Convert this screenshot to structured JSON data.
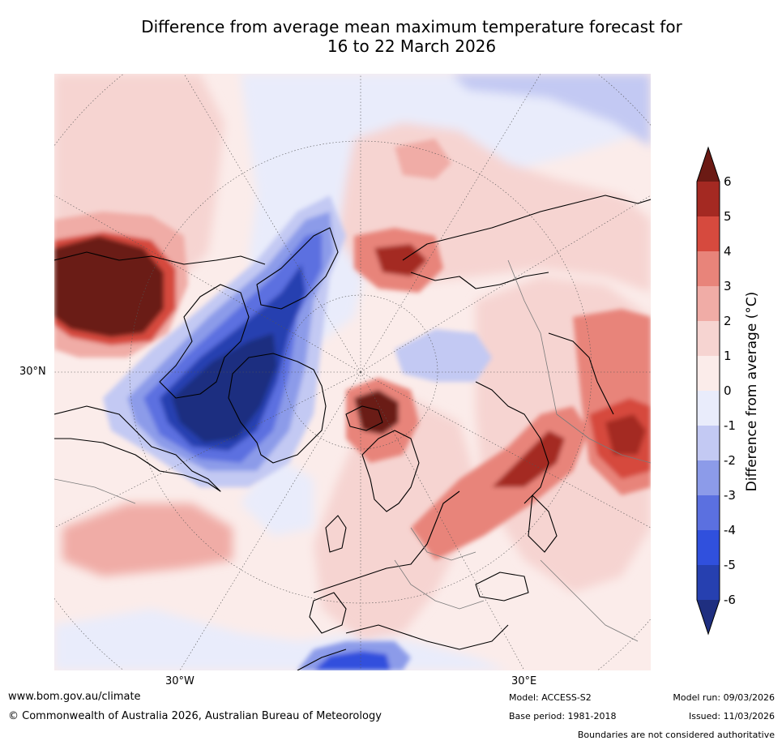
{
  "title": {
    "line1": "Difference from average mean maximum temperature forecast for",
    "line2": "16 to 22 March 2026"
  },
  "axes": {
    "lat_label": "30°N",
    "lon_labels": [
      "30°W",
      "30°E"
    ]
  },
  "colorbar": {
    "label": "Difference from average (°C)",
    "ticks": [
      "6",
      "5",
      "4",
      "3",
      "2",
      "1",
      "0",
      "-1",
      "-2",
      "-3",
      "-4",
      "-5",
      "-6"
    ],
    "colors": [
      "#6b1a14",
      "#a42922",
      "#d64a3e",
      "#e8847a",
      "#f0aca6",
      "#f6d4d1",
      "#fbecea",
      "#e9ecfb",
      "#c3c9f3",
      "#8c9be9",
      "#5b70e0",
      "#3050dd",
      "#2640b0",
      "#1f2f80"
    ]
  },
  "footer": {
    "url": "www.bom.gov.au/climate",
    "copyright": "© Commonwealth of Australia 2026, Australian Bureau of Meteorology",
    "model": "Model: ACCESS-S2",
    "base_period": "Base period: 1981-2018",
    "model_run": "Model run: 09/03/2026",
    "issued": "Issued: 11/03/2026",
    "boundaries": "Boundaries are not considered authoritative"
  }
}
